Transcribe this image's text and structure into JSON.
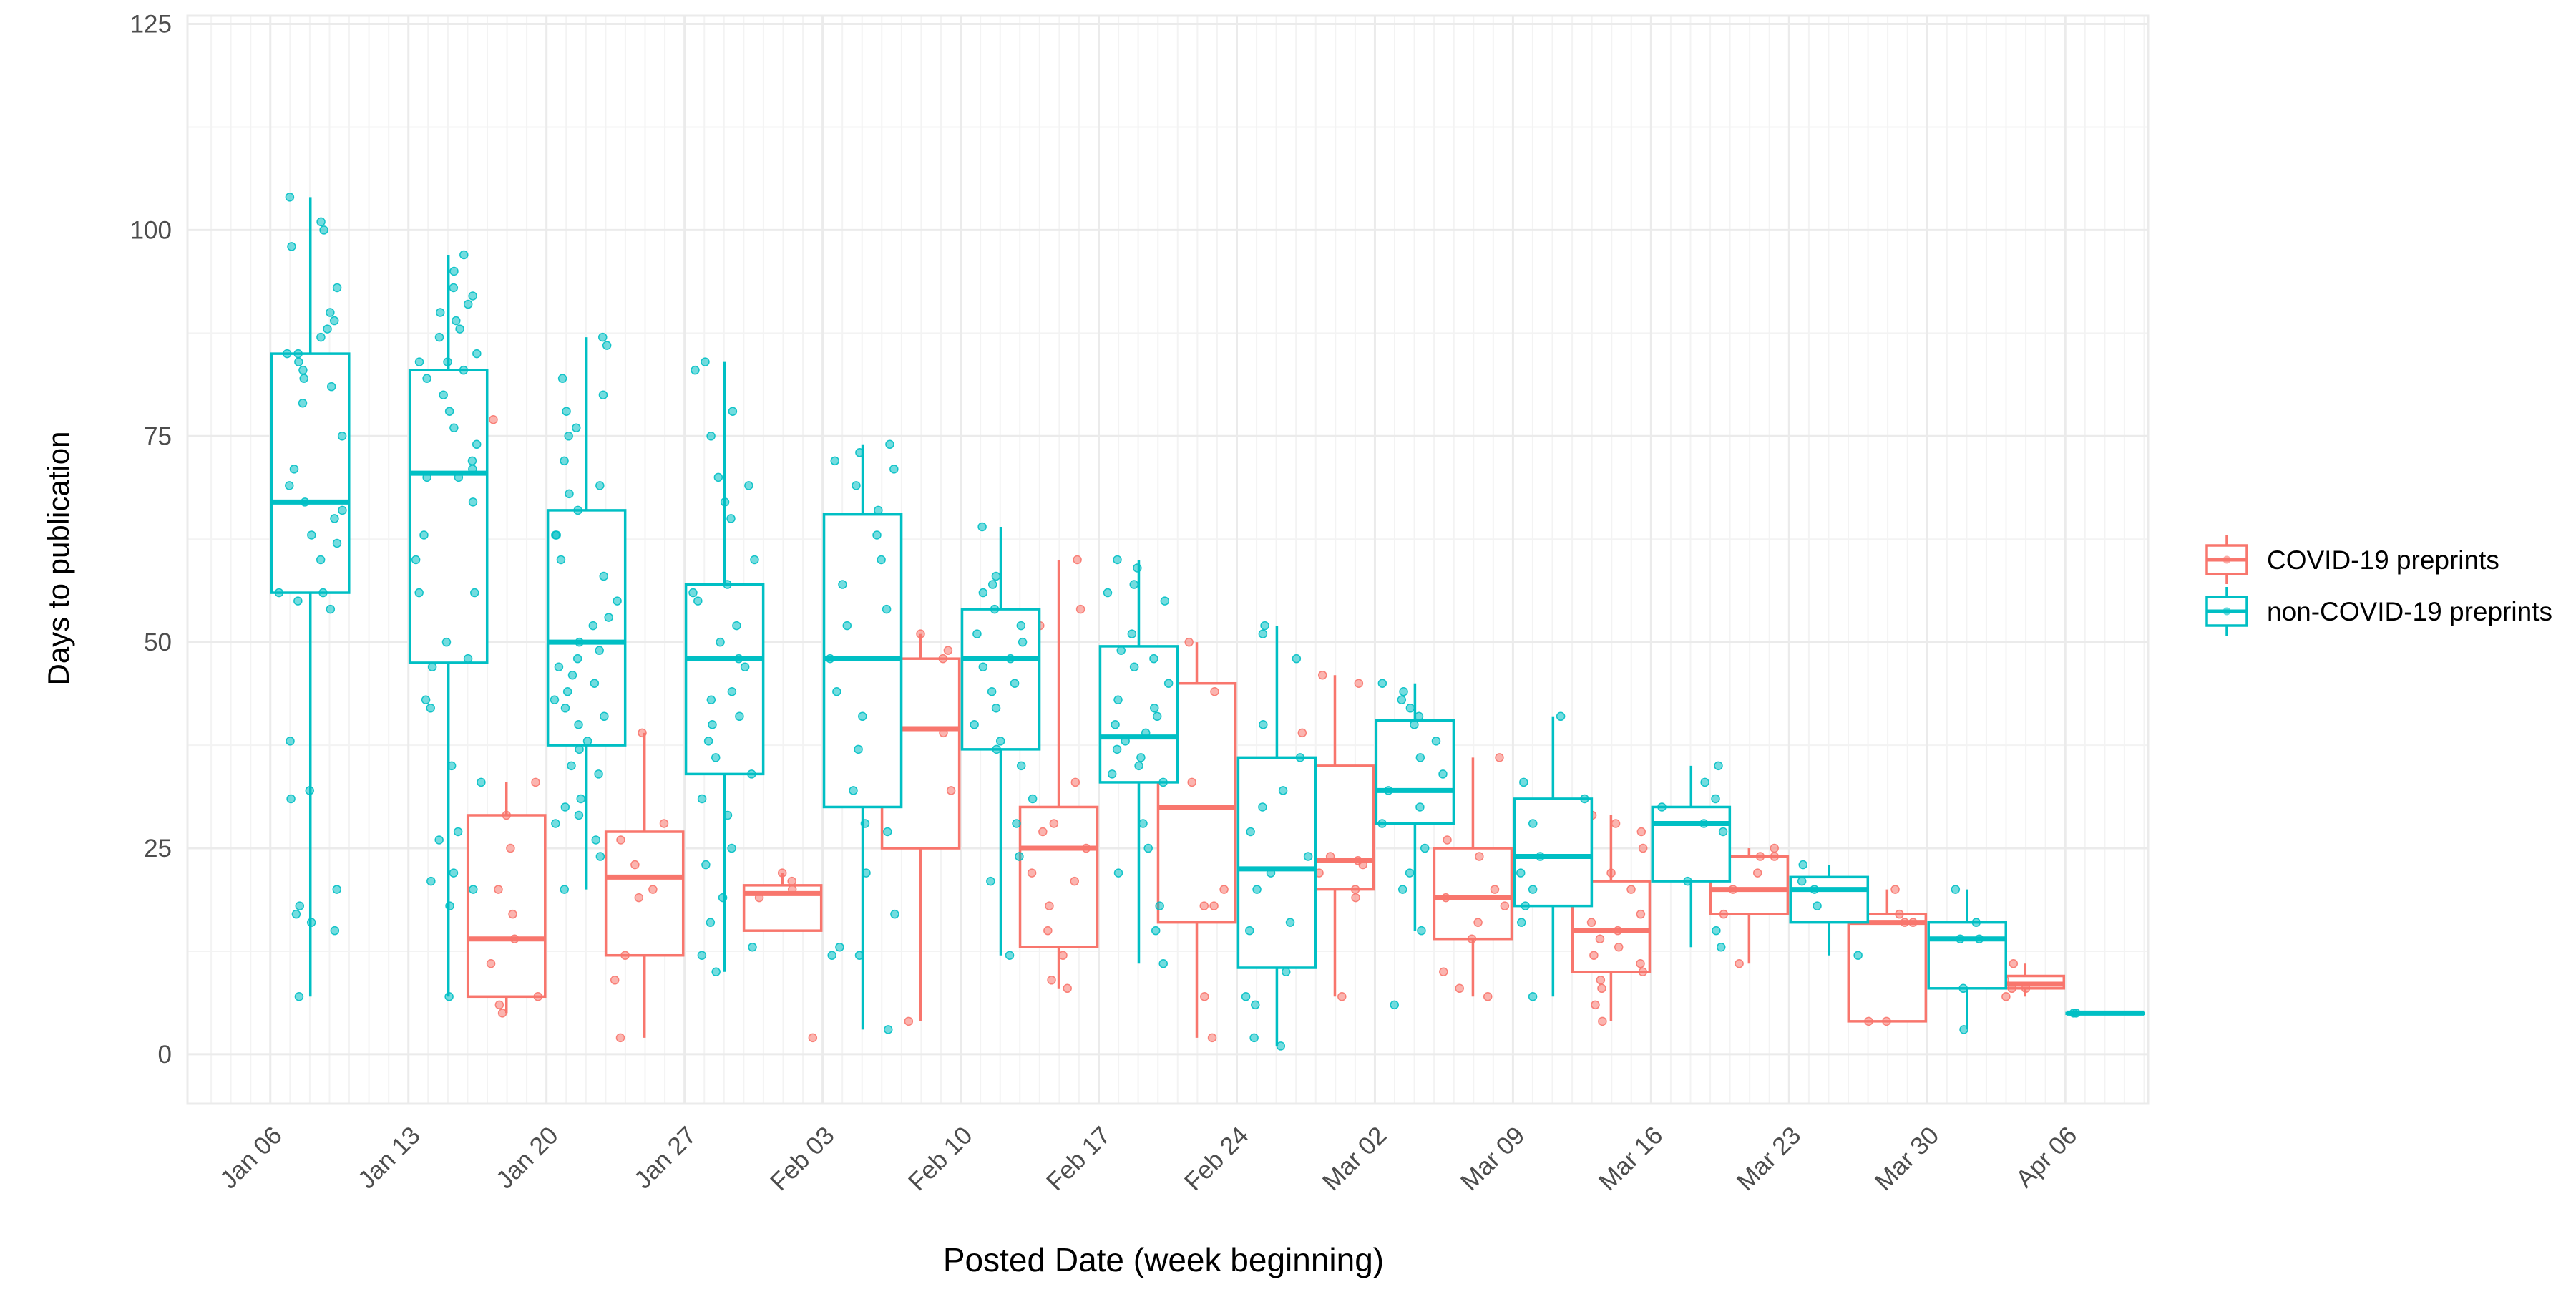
{
  "chart_data": {
    "type": "boxplot",
    "xlabel": "Posted Date (week beginning)",
    "ylabel": "Days to publication",
    "ylim": [
      -6,
      126
    ],
    "y_ticks": [
      "0",
      "25",
      "50",
      "75",
      "100",
      "125"
    ],
    "y_tick_values": [
      0,
      25,
      50,
      75,
      100,
      125
    ],
    "categories": [
      "Jan 06",
      "Jan 13",
      "Jan 20",
      "Jan 27",
      "Feb 03",
      "Feb 10",
      "Feb 17",
      "Feb 24",
      "Mar 02",
      "Mar 09",
      "Mar 16",
      "Mar 23",
      "Mar 30",
      "Apr 06"
    ],
    "grid": true,
    "legend_position": "right",
    "series": [
      {
        "name": "COVID-19 preprints",
        "color": "#F8766D",
        "boxes": [
          null,
          null,
          {
            "whisker_low": 5,
            "q1": 7,
            "median": 14,
            "q3": 29,
            "whisker_high": 33,
            "points": [
              33,
              29,
              25,
              20,
              17,
              14,
              11,
              7,
              6,
              5,
              77
            ]
          },
          {
            "whisker_low": 2,
            "q1": 12,
            "median": 21.5,
            "q3": 27,
            "whisker_high": 39,
            "points": [
              39,
              28,
              26,
              23,
              20,
              19,
              12,
              9,
              2
            ]
          },
          {
            "whisker_low": 15,
            "q1": 15,
            "median": 19.5,
            "q3": 20.5,
            "whisker_high": 22,
            "points": [
              22,
              21,
              20,
              19,
              2
            ]
          },
          {
            "whisker_low": 4,
            "q1": 25,
            "median": 39.5,
            "q3": 48,
            "whisker_high": 51,
            "points": [
              51,
              49,
              48,
              39,
              32,
              4
            ]
          },
          {
            "whisker_low": 8,
            "q1": 13,
            "median": 25,
            "q3": 30,
            "whisker_high": 60,
            "points": [
              60,
              54,
              52,
              38,
              33,
              28,
              27,
              25,
              22,
              21,
              18,
              15,
              12,
              9,
              8
            ]
          },
          {
            "whisker_low": 2,
            "q1": 16,
            "median": 30,
            "q3": 45,
            "whisker_high": 50,
            "points": [
              50,
              49,
              45,
              44,
              33,
              20,
              18,
              18,
              7,
              2
            ]
          },
          {
            "whisker_low": 7,
            "q1": 20,
            "median": 23.5,
            "q3": 35,
            "whisker_high": 46,
            "points": [
              46,
              45,
              39,
              35,
              24,
              23.5,
              23,
              23,
              22,
              20,
              19,
              7
            ]
          },
          {
            "whisker_low": 7,
            "q1": 14,
            "median": 19,
            "q3": 25,
            "whisker_high": 36,
            "points": [
              36,
              26,
              24,
              20,
              19,
              18,
              16,
              14,
              10,
              8,
              7
            ]
          },
          {
            "whisker_low": 4,
            "q1": 10,
            "median": 15,
            "q3": 21,
            "whisker_high": 29,
            "points": [
              29,
              28,
              27,
              25,
              22,
              20,
              17,
              16,
              15,
              14,
              13,
              12,
              11,
              10,
              9,
              8,
              6,
              4
            ]
          },
          {
            "whisker_low": 11,
            "q1": 17,
            "median": 20,
            "q3": 24,
            "whisker_high": 25,
            "points": [
              25,
              24,
              24,
              22,
              20,
              17,
              11
            ]
          },
          {
            "whisker_low": 4,
            "q1": 4,
            "median": 16,
            "q3": 17,
            "whisker_high": 20,
            "points": [
              20,
              17,
              16,
              16,
              4,
              4
            ]
          },
          {
            "whisker_low": 7,
            "q1": 8,
            "median": 8.5,
            "q3": 9.5,
            "whisker_high": 11,
            "points": [
              11,
              9,
              8,
              8,
              7
            ]
          }
        ]
      },
      {
        "name": "non-COVID-19 preprints",
        "color": "#00BFC4",
        "boxes": [
          {
            "whisker_low": 7,
            "q1": 56,
            "median": 67,
            "q3": 85,
            "whisker_high": 104,
            "points": [
              104,
              101,
              100,
              98,
              93,
              90,
              89,
              88,
              87,
              85,
              85,
              84,
              83,
              82,
              81,
              79,
              75,
              71,
              69,
              67,
              66,
              65,
              63,
              62,
              60,
              56,
              56,
              55,
              54,
              38,
              32,
              31,
              20,
              18,
              17,
              16,
              15,
              7
            ]
          },
          {
            "whisker_low": 7,
            "q1": 47.5,
            "median": 70.5,
            "q3": 83,
            "whisker_high": 97,
            "points": [
              97,
              95,
              93,
              92,
              91,
              90,
              89,
              88,
              87,
              85,
              84,
              84,
              83,
              82,
              80,
              78,
              76,
              74,
              72,
              71,
              70,
              70,
              67,
              63,
              60,
              56,
              56,
              50,
              48,
              47,
              43,
              42,
              35,
              33,
              27,
              26,
              22,
              21,
              20,
              18,
              7
            ]
          },
          {
            "whisker_low": 20,
            "q1": 37.5,
            "median": 50,
            "q3": 66,
            "whisker_high": 87,
            "points": [
              87,
              86,
              82,
              80,
              78,
              76,
              75,
              72,
              69,
              68,
              66,
              63,
              63,
              60,
              58,
              55,
              53,
              52,
              50,
              49,
              48,
              47,
              46,
              45,
              44,
              43,
              42,
              41,
              40,
              38,
              37,
              35,
              34,
              31,
              30,
              29,
              28,
              26,
              24,
              20
            ]
          },
          {
            "whisker_low": 10,
            "q1": 34,
            "median": 48,
            "q3": 57,
            "whisker_high": 84,
            "points": [
              84,
              83,
              78,
              75,
              70,
              69,
              67,
              65,
              60,
              57,
              56,
              55,
              52,
              50,
              48,
              47,
              44,
              43,
              41,
              40,
              38,
              36,
              34,
              31,
              29,
              25,
              23,
              19,
              16,
              13,
              12,
              10
            ]
          },
          {
            "whisker_low": 3,
            "q1": 30,
            "median": 48,
            "q3": 65.5,
            "whisker_high": 74,
            "points": [
              74,
              73,
              72,
              71,
              69,
              66,
              63,
              60,
              57,
              54,
              52,
              48,
              44,
              41,
              37,
              32,
              28,
              27,
              22,
              17,
              13,
              12,
              12,
              3
            ]
          },
          {
            "whisker_low": 12,
            "q1": 37,
            "median": 48,
            "q3": 54,
            "whisker_high": 64,
            "points": [
              64,
              58,
              57,
              56,
              54,
              52,
              51,
              50,
              48,
              47,
              45,
              44,
              42,
              40,
              38,
              37,
              35,
              31,
              28,
              24,
              21,
              12
            ]
          },
          {
            "whisker_low": 11,
            "q1": 33,
            "median": 38.5,
            "q3": 49.5,
            "whisker_high": 60,
            "points": [
              60,
              59,
              57,
              56,
              55,
              51,
              49,
              48,
              47,
              45,
              43,
              42,
              41,
              40,
              39,
              38,
              37,
              36,
              35,
              34,
              33,
              28,
              25,
              22,
              18,
              15,
              11
            ]
          },
          {
            "whisker_low": 1,
            "q1": 10.5,
            "median": 22.5,
            "q3": 36,
            "whisker_high": 52,
            "points": [
              52,
              51,
              48,
              40,
              36,
              32,
              30,
              27,
              24,
              22,
              20,
              16,
              15,
              10,
              7,
              6,
              2,
              1
            ]
          },
          {
            "whisker_low": 15,
            "q1": 28,
            "median": 32,
            "q3": 40.5,
            "whisker_high": 45,
            "points": [
              45,
              44,
              43,
              42,
              41,
              40,
              38,
              36,
              34,
              32,
              30,
              28,
              25,
              22,
              20,
              15,
              6
            ]
          },
          {
            "whisker_low": 7,
            "q1": 18,
            "median": 24,
            "q3": 31,
            "whisker_high": 41,
            "points": [
              41,
              33,
              31,
              28,
              24,
              22,
              20,
              18,
              16,
              7
            ]
          },
          {
            "whisker_low": 13,
            "q1": 21,
            "median": 28,
            "q3": 30,
            "whisker_high": 35,
            "points": [
              35,
              33,
              31,
              30,
              28,
              27,
              21,
              15,
              13
            ]
          },
          {
            "whisker_low": 12,
            "q1": 16,
            "median": 20,
            "q3": 21.5,
            "whisker_high": 23,
            "points": [
              23,
              21,
              20,
              18,
              12
            ]
          },
          {
            "whisker_low": 3,
            "q1": 8,
            "median": 14,
            "q3": 16,
            "whisker_high": 20,
            "points": [
              20,
              16,
              14,
              14,
              8,
              3
            ]
          },
          {
            "whisker_low": 5,
            "q1": 5,
            "median": 5,
            "q3": 5,
            "whisker_high": 5,
            "points": [
              5,
              5
            ]
          }
        ]
      }
    ]
  }
}
